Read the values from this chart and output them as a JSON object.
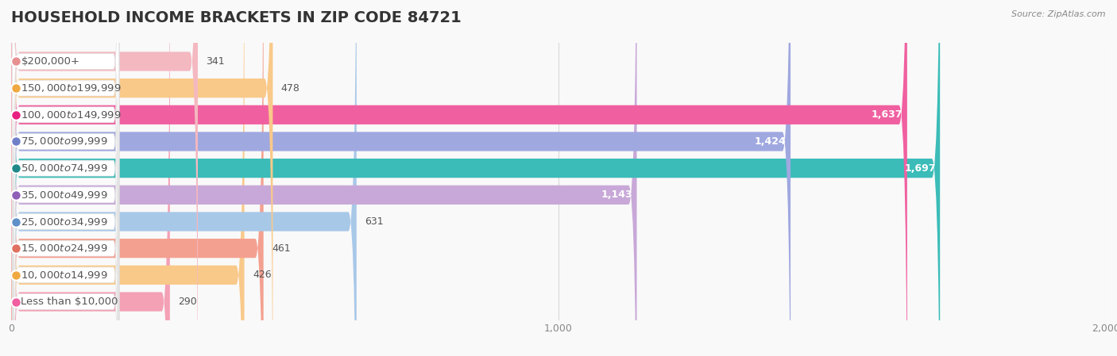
{
  "title": "HOUSEHOLD INCOME BRACKETS IN ZIP CODE 84721",
  "source": "Source: ZipAtlas.com",
  "categories": [
    "Less than $10,000",
    "$10,000 to $14,999",
    "$15,000 to $24,999",
    "$25,000 to $34,999",
    "$35,000 to $49,999",
    "$50,000 to $74,999",
    "$75,000 to $99,999",
    "$100,000 to $149,999",
    "$150,000 to $199,999",
    "$200,000+"
  ],
  "values": [
    290,
    426,
    461,
    631,
    1143,
    1697,
    1424,
    1637,
    478,
    341
  ],
  "bar_colors": [
    "#F4A0B5",
    "#F9C98A",
    "#F4A090",
    "#A8C8E8",
    "#C8A8D8",
    "#3BBCB8",
    "#A0A8E0",
    "#F060A0",
    "#F9C98A",
    "#F4B8C0"
  ],
  "dot_colors": [
    "#F060A0",
    "#F0A840",
    "#E07060",
    "#6090C8",
    "#9060B8",
    "#208888",
    "#7080C8",
    "#E82080",
    "#F0A840",
    "#E89090"
  ],
  "xlim": [
    0,
    2000
  ],
  "xticks": [
    0,
    1000,
    2000
  ],
  "xtick_labels": [
    "0",
    "1,000",
    "2,000"
  ],
  "bg_color": "#f5f5f5",
  "row_color_even": "#efefef",
  "row_color_odd": "#fafafa",
  "title_fontsize": 14,
  "label_fontsize": 9.5,
  "value_fontsize": 9,
  "bar_height": 0.72
}
